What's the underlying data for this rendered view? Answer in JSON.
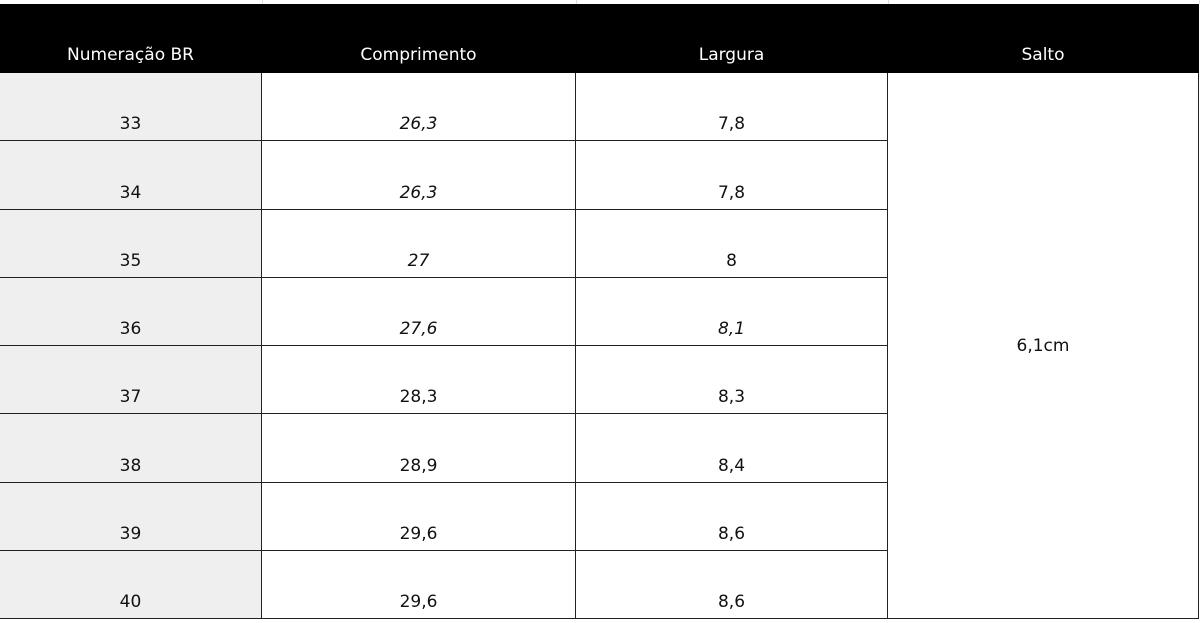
{
  "table": {
    "headers": [
      "Numeração BR",
      "Comprimento",
      "Largura",
      "Salto"
    ],
    "rows": [
      [
        "33",
        "26,3",
        "7,8"
      ],
      [
        "34",
        "26,3",
        "7,8"
      ],
      [
        "35",
        "27",
        "8"
      ],
      [
        "36",
        "27,6",
        "8,1"
      ],
      [
        "37",
        "28,3",
        "8,3"
      ],
      [
        "38",
        "28,9",
        "8,4"
      ],
      [
        "39",
        "29,6",
        "8,6"
      ],
      [
        "40",
        "29,6",
        "8,6"
      ]
    ],
    "salto": "6,1cm"
  }
}
